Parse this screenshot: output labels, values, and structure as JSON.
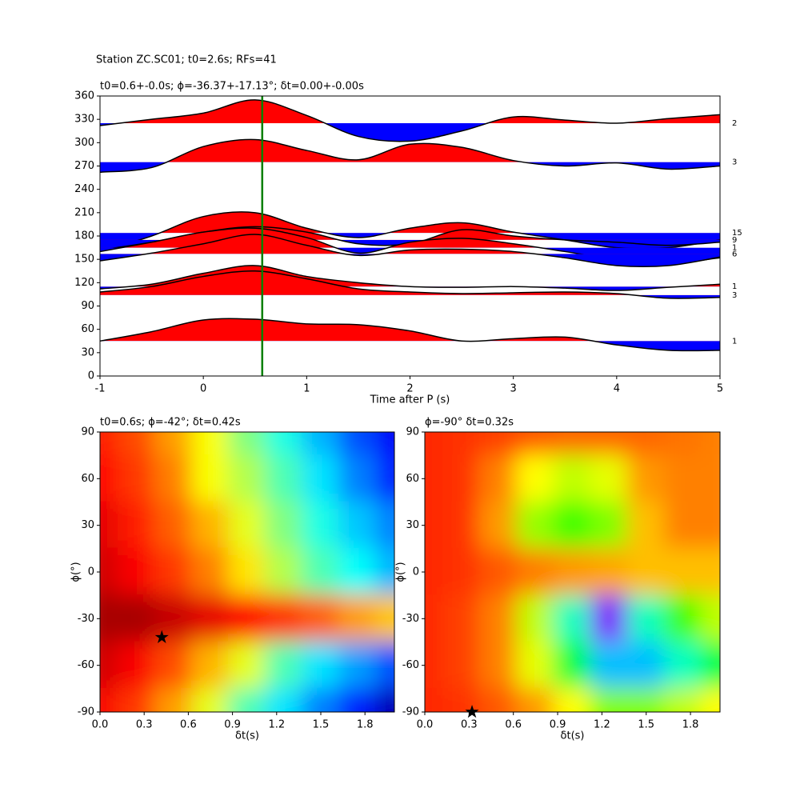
{
  "title": "Station ZC.SC01; t0=2.6s; RFs=41",
  "chart_data": [
    {
      "type": "wiggle",
      "title": "t0=0.6+-0.0s; ϕ=-36.37+-17.13°; δt=0.00+-0.00s",
      "xlabel": "Time after P (s)",
      "xlim": [
        -1,
        5
      ],
      "xticks": [
        -1,
        0,
        1,
        2,
        3,
        4,
        5
      ],
      "ylim": [
        0,
        360
      ],
      "yticks": [
        0,
        30,
        60,
        90,
        120,
        150,
        180,
        210,
        240,
        270,
        300,
        330,
        360
      ],
      "positive_color": "#ff0000",
      "negative_color": "#0000ff",
      "line_color": "#000000",
      "vline_x": 0.57,
      "vline_color": "#008000",
      "x": [
        -1,
        -0.5,
        0,
        0.5,
        1,
        1.5,
        2,
        2.5,
        3,
        3.5,
        4,
        4.5,
        5
      ],
      "series": [
        {
          "name": "2",
          "baseline": 325,
          "values": [
            322,
            330,
            338,
            355,
            335,
            308,
            302,
            315,
            333,
            329,
            325,
            331,
            336
          ]
        },
        {
          "name": "3",
          "baseline": 275,
          "values": [
            262,
            268,
            295,
            304,
            290,
            278,
            298,
            294,
            277,
            270,
            274,
            266,
            270
          ]
        },
        {
          "name": "15",
          "baseline": 184,
          "values": [
            160,
            180,
            205,
            210,
            190,
            178,
            190,
            197,
            185,
            175,
            165,
            165,
            175
          ]
        },
        {
          "name": "9",
          "baseline": 175,
          "values": [
            162,
            172,
            185,
            192,
            185,
            170,
            170,
            188,
            180,
            175,
            172,
            168,
            172
          ]
        },
        {
          "name": "1",
          "baseline": 165,
          "values": [
            160,
            172,
            185,
            190,
            178,
            158,
            172,
            177,
            170,
            160,
            150,
            145,
            152
          ]
        },
        {
          "name": "6",
          "baseline": 157,
          "values": [
            148,
            158,
            170,
            182,
            168,
            155,
            162,
            163,
            160,
            152,
            142,
            142,
            153
          ]
        },
        {
          "name": "1",
          "baseline": 115,
          "values": [
            112,
            118,
            132,
            142,
            128,
            120,
            115,
            114,
            115,
            113,
            110,
            114,
            118
          ]
        },
        {
          "name": "3",
          "baseline": 104,
          "values": [
            108,
            115,
            128,
            135,
            125,
            112,
            108,
            106,
            107,
            108,
            106,
            100,
            101
          ]
        },
        {
          "name": "1",
          "baseline": 45,
          "values": [
            45,
            57,
            72,
            73,
            67,
            66,
            58,
            45,
            48,
            50,
            40,
            33,
            33
          ]
        }
      ]
    },
    {
      "type": "heatmap",
      "title": "t0=0.6s; ϕ=-42°; δt=0.42s",
      "xlabel": "δt(s)",
      "ylabel": "ϕ(°)",
      "colormap": "jet",
      "xlim": [
        0,
        2
      ],
      "xticks": [
        {
          "value": 0,
          "label": "0.0"
        },
        0.3,
        0.6,
        0.9,
        1.2,
        1.5,
        1.8
      ],
      "ylim": [
        -90,
        90
      ],
      "yticks": [
        -90,
        -60,
        -30,
        0,
        30,
        60,
        90
      ],
      "x": [
        0,
        0.25,
        0.5,
        0.75,
        1,
        1.25,
        1.5,
        1.75,
        2
      ],
      "y": [
        90,
        60,
        30,
        0,
        -30,
        -60,
        -90
      ],
      "z": [
        [
          0.85,
          0.8,
          0.72,
          0.62,
          0.5,
          0.4,
          0.3,
          0.2,
          0.12
        ],
        [
          0.87,
          0.82,
          0.75,
          0.62,
          0.55,
          0.45,
          0.35,
          0.25,
          0.15
        ],
        [
          0.9,
          0.85,
          0.78,
          0.7,
          0.6,
          0.5,
          0.4,
          0.32,
          0.25
        ],
        [
          0.92,
          0.88,
          0.82,
          0.75,
          0.65,
          0.55,
          0.45,
          0.38,
          0.3
        ],
        [
          0.96,
          0.96,
          0.93,
          0.9,
          0.87,
          0.82,
          0.78,
          0.72,
          0.68
        ],
        [
          0.92,
          0.88,
          0.8,
          0.7,
          0.6,
          0.45,
          0.35,
          0.28,
          0.2
        ],
        [
          0.88,
          0.82,
          0.72,
          0.6,
          0.45,
          0.35,
          0.25,
          0.15,
          0.05
        ]
      ],
      "star_x": 0.42,
      "star_y": -42
    },
    {
      "type": "heatmap",
      "title": "ϕ=-90° δt=0.32s",
      "xlabel": "δt(s)",
      "ylabel": "ϕ(°)",
      "colormap": "hsv",
      "xlim": [
        0,
        2
      ],
      "xticks": [
        {
          "value": 0,
          "label": "0.0"
        },
        0.3,
        0.6,
        0.9,
        1.2,
        1.5,
        1.8
      ],
      "ylim": [
        -90,
        90
      ],
      "yticks": [
        -90,
        -60,
        -30,
        0,
        30,
        60,
        90
      ],
      "x": [
        0,
        0.25,
        0.5,
        0.75,
        1,
        1.25,
        1.5,
        1.75,
        2
      ],
      "y": [
        90,
        60,
        30,
        0,
        -30,
        -60,
        -90
      ],
      "z": [
        [
          0.97,
          0.96,
          0.95,
          0.93,
          0.92,
          0.92,
          0.92,
          0.91,
          0.9
        ],
        [
          0.97,
          0.96,
          0.9,
          0.8,
          0.75,
          0.78,
          0.88,
          0.9,
          0.9
        ],
        [
          0.97,
          0.96,
          0.88,
          0.72,
          0.65,
          0.7,
          0.85,
          0.9,
          0.9
        ],
        [
          0.97,
          0.96,
          0.93,
          0.9,
          0.88,
          0.87,
          0.85,
          0.85,
          0.85
        ],
        [
          0.97,
          0.95,
          0.9,
          0.75,
          0.45,
          0.1,
          0.45,
          0.65,
          0.75
        ],
        [
          0.97,
          0.95,
          0.9,
          0.78,
          0.55,
          0.35,
          0.35,
          0.45,
          0.55
        ],
        [
          0.97,
          0.96,
          0.93,
          0.88,
          0.8,
          0.7,
          0.7,
          0.75,
          0.8
        ]
      ],
      "star_x": 0.32,
      "star_y": -90
    }
  ]
}
